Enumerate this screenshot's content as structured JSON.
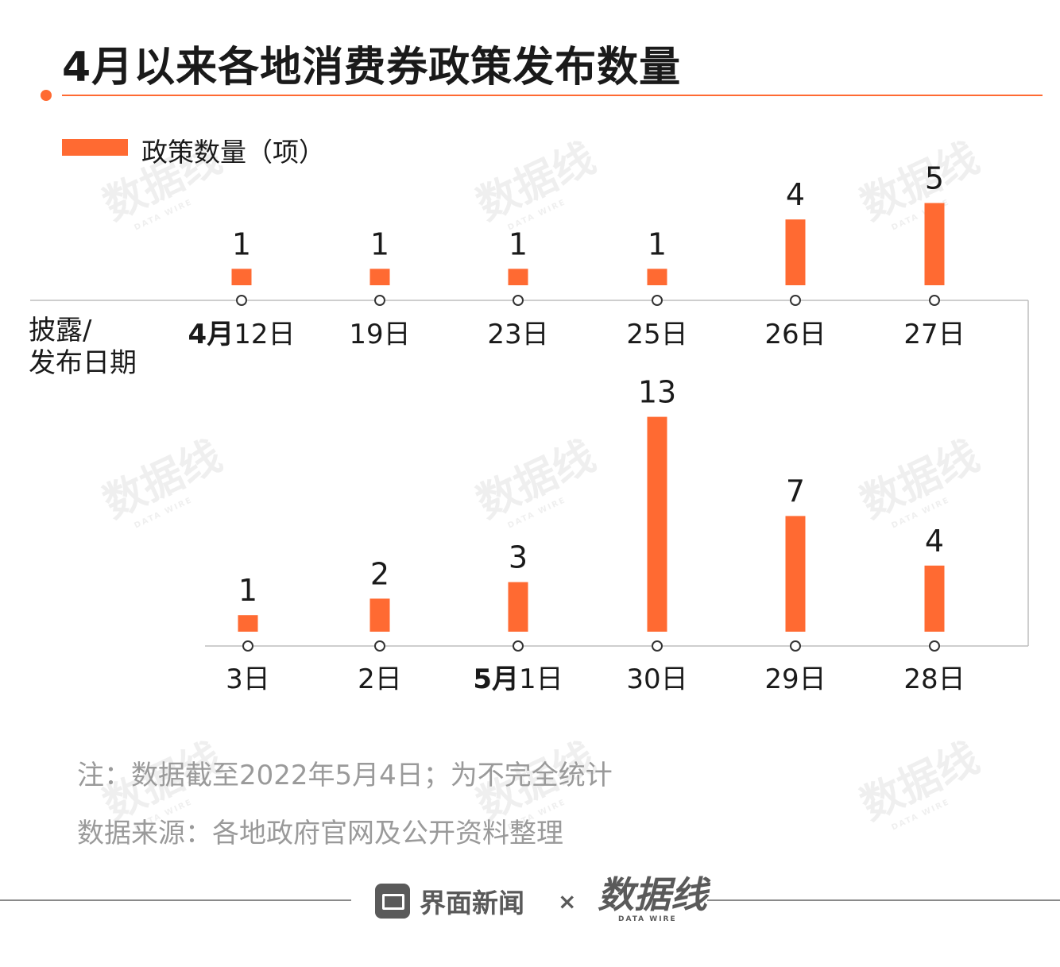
{
  "title": "4月以来各地消费券政策发布数量",
  "legend": {
    "label": "政策数量（项）"
  },
  "axis_label": {
    "line1": "披露/",
    "line2": "发布日期"
  },
  "colors": {
    "accent": "#ff6a32",
    "axis": "#bdbdbd",
    "text": "#1a1a1a",
    "note": "#9a9a9a"
  },
  "chart_data": {
    "type": "bar",
    "layout": "snake timeline (two rows; top row runs left-to-right, bottom row runs right-to-left)",
    "series": [
      {
        "name": "政策数量（项）",
        "color": "#ff6a32"
      }
    ],
    "rows": [
      {
        "row": "top",
        "categories": [
          {
            "prefix": "4月",
            "label": "12日",
            "value": 1
          },
          {
            "prefix": "",
            "label": "19日",
            "value": 1
          },
          {
            "prefix": "",
            "label": "23日",
            "value": 1
          },
          {
            "prefix": "",
            "label": "25日",
            "value": 1
          },
          {
            "prefix": "",
            "label": "26日",
            "value": 4
          },
          {
            "prefix": "",
            "label": "27日",
            "value": 5
          }
        ]
      },
      {
        "row": "bottom",
        "categories": [
          {
            "prefix": "",
            "label": "3日",
            "value": 1
          },
          {
            "prefix": "",
            "label": "2日",
            "value": 2
          },
          {
            "prefix": "5月",
            "label": "1日",
            "value": 3
          },
          {
            "prefix": "",
            "label": "30日",
            "value": 13
          },
          {
            "prefix": "",
            "label": "29日",
            "value": 7
          },
          {
            "prefix": "",
            "label": "28日",
            "value": 4
          }
        ]
      }
    ]
  },
  "notes": {
    "note": "注：数据截至2022年5月4日；为不完全统计",
    "source": "数据来源：各地政府官网及公开资料整理"
  },
  "watermark": {
    "text": "数据线",
    "subtext": "DATA WIRE"
  },
  "footer": {
    "brand1": "界面新闻",
    "times": "×",
    "brand2": "数据线",
    "brand2_sub": "DATA WIRE"
  }
}
